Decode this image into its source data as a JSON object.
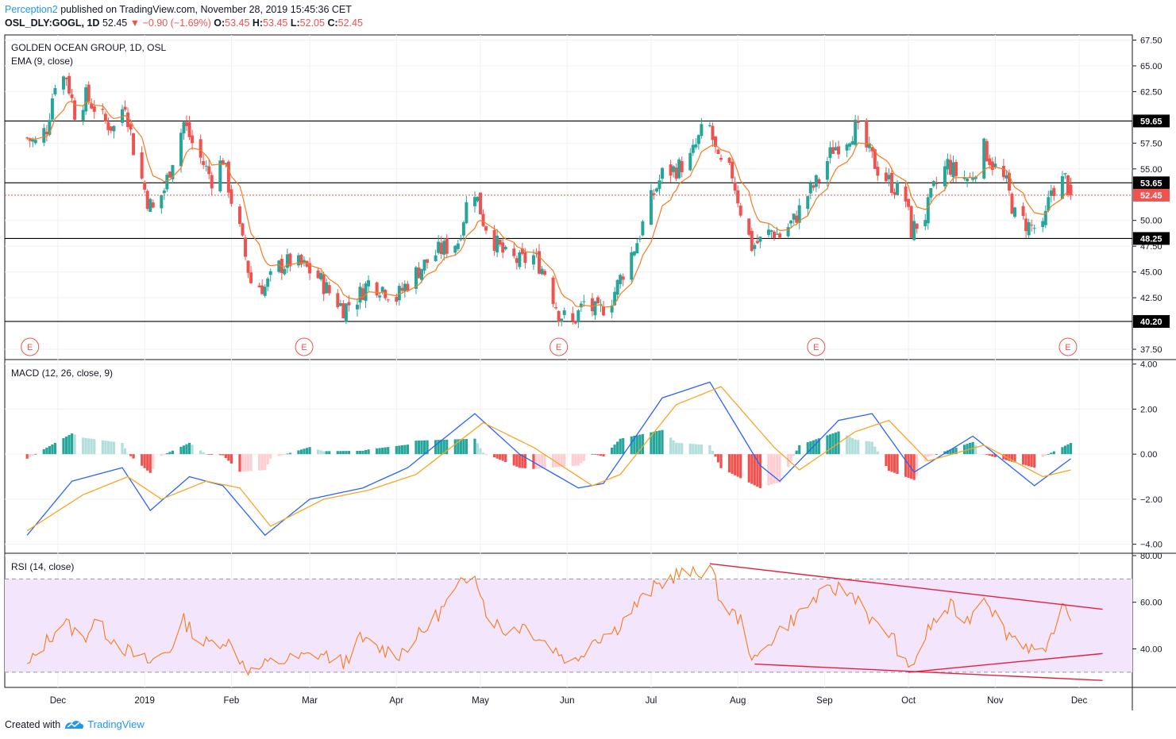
{
  "header": {
    "author": "Perception2",
    "published_text": "published on TradingView.com, November 28, 2019 15:45:36 CET",
    "symbol": "OSL_DLY:GOGL, 1D",
    "last": "52.45",
    "change": "−0.90 (−1.69%)",
    "open_label": "O:",
    "open": "53.45",
    "high_label": "H:",
    "high": "53.45",
    "low_label": "L:",
    "low": "52.05",
    "close_label": "C:",
    "close": "52.45"
  },
  "footer": {
    "created_with": "Created with",
    "brand": "TradingView"
  },
  "colors": {
    "up": "#26a69a",
    "down": "#ef5350",
    "ema": "#f57c1f",
    "macd": "#2962ff",
    "signal": "#f5a623",
    "rsi": "#f57c1f",
    "rsi_band": "#f3e5fb",
    "trendline": "#e91e3c",
    "level": "#000000"
  },
  "chart_data": [
    {
      "type": "candlestick",
      "title": "GOLDEN OCEAN GROUP, 1D, OSL",
      "indicator": "EMA (9, close)",
      "ylim": [
        36.5,
        68
      ],
      "y_ticks": [
        "67.50",
        "65.00",
        "62.50",
        "57.50",
        "55.00",
        "50.00",
        "47.50",
        "45.00",
        "42.50",
        "37.50"
      ],
      "x_ticks": [
        "Dec",
        "2019",
        "Feb",
        "Mar",
        "Apr",
        "May",
        "Jun",
        "Jul",
        "Aug",
        "Sep",
        "Oct",
        "Nov",
        "Dec"
      ],
      "horizontal_levels": [
        59.65,
        53.65,
        48.25,
        40.2
      ],
      "level_labels": [
        "59.65",
        "53.65",
        "48.25",
        "40.20"
      ],
      "last_price": 52.45,
      "last_price_label": "52.45",
      "earnings_marker": "E",
      "earnings_dates": [
        "2018-11-21",
        "2019-02-27",
        "2019-05-29",
        "2019-08-29",
        "2019-11-27"
      ],
      "start_date": "2018-11-20",
      "end_date": "2019-11-28",
      "anchors": [
        [
          "2018-11-20",
          58.0
        ],
        [
          "2018-11-23",
          57.5
        ],
        [
          "2018-11-27",
          59.0
        ],
        [
          "2018-11-30",
          63.5
        ],
        [
          "2018-12-04",
          64.0
        ],
        [
          "2018-12-07",
          60.5
        ],
        [
          "2018-12-11",
          62.0
        ],
        [
          "2018-12-14",
          61.0
        ],
        [
          "2018-12-18",
          59.5
        ],
        [
          "2018-12-21",
          59.0
        ],
        [
          "2018-12-25",
          61.5
        ],
        [
          "2018-12-28",
          57.0
        ],
        [
          "2019-01-02",
          52.0
        ],
        [
          "2019-01-04",
          51.0
        ],
        [
          "2019-01-08",
          53.0
        ],
        [
          "2019-01-11",
          56.0
        ],
        [
          "2019-01-15",
          59.5
        ],
        [
          "2019-01-18",
          57.5
        ],
        [
          "2019-01-22",
          55.5
        ],
        [
          "2019-01-25",
          54.0
        ],
        [
          "2019-01-29",
          56.0
        ],
        [
          "2019-02-01",
          52.0
        ],
        [
          "2019-02-04",
          49.0
        ],
        [
          "2019-02-06",
          46.5
        ],
        [
          "2019-02-08",
          44.0
        ],
        [
          "2019-02-13",
          43.5
        ],
        [
          "2019-02-18",
          45.5
        ],
        [
          "2019-02-22",
          46.0
        ],
        [
          "2019-02-27",
          45.5
        ],
        [
          "2019-03-04",
          44.5
        ],
        [
          "2019-03-08",
          43.0
        ],
        [
          "2019-03-13",
          41.5
        ],
        [
          "2019-03-18",
          42.5
        ],
        [
          "2019-03-22",
          44.0
        ],
        [
          "2019-03-27",
          43.5
        ],
        [
          "2019-04-01",
          42.5
        ],
        [
          "2019-04-05",
          44.0
        ],
        [
          "2019-04-10",
          45.5
        ],
        [
          "2019-04-16",
          47.0
        ],
        [
          "2019-04-23",
          48.0
        ],
        [
          "2019-04-26",
          51.5
        ],
        [
          "2019-04-29",
          53.0
        ],
        [
          "2019-05-02",
          50.0
        ],
        [
          "2019-05-06",
          48.0
        ],
        [
          "2019-05-10",
          46.5
        ],
        [
          "2019-05-15",
          46.0
        ],
        [
          "2019-05-20",
          46.5
        ],
        [
          "2019-05-24",
          45.0
        ],
        [
          "2019-05-29",
          41.0
        ],
        [
          "2019-06-03",
          40.0
        ],
        [
          "2019-06-07",
          42.0
        ],
        [
          "2019-06-12",
          41.0
        ],
        [
          "2019-06-17",
          42.5
        ],
        [
          "2019-06-21",
          45.0
        ],
        [
          "2019-06-26",
          48.0
        ],
        [
          "2019-07-01",
          52.0
        ],
        [
          "2019-07-05",
          54.5
        ],
        [
          "2019-07-10",
          55.0
        ],
        [
          "2019-07-15",
          56.0
        ],
        [
          "2019-07-19",
          58.5
        ],
        [
          "2019-07-22",
          59.0
        ],
        [
          "2019-07-25",
          55.5
        ],
        [
          "2019-07-30",
          54.5
        ],
        [
          "2019-08-02",
          51.0
        ],
        [
          "2019-08-06",
          47.5
        ],
        [
          "2019-08-09",
          48.0
        ],
        [
          "2019-08-13",
          49.0
        ],
        [
          "2019-08-16",
          48.5
        ],
        [
          "2019-08-21",
          50.0
        ],
        [
          "2019-08-26",
          52.5
        ],
        [
          "2019-08-30",
          54.0
        ],
        [
          "2019-09-04",
          57.0
        ],
        [
          "2019-09-09",
          58.0
        ],
        [
          "2019-09-12",
          59.0
        ],
        [
          "2019-09-16",
          57.0
        ],
        [
          "2019-09-20",
          55.0
        ],
        [
          "2019-09-25",
          53.5
        ],
        [
          "2019-09-30",
          52.0
        ],
        [
          "2019-10-02",
          49.0
        ],
        [
          "2019-10-07",
          50.5
        ],
        [
          "2019-10-10",
          53.0
        ],
        [
          "2019-10-15",
          55.5
        ],
        [
          "2019-10-18",
          54.5
        ],
        [
          "2019-10-23",
          54.0
        ],
        [
          "2019-10-28",
          57.0
        ],
        [
          "2019-10-31",
          55.5
        ],
        [
          "2019-11-05",
          53.5
        ],
        [
          "2019-11-08",
          50.5
        ],
        [
          "2019-11-13",
          49.5
        ],
        [
          "2019-11-18",
          49.0
        ],
        [
          "2019-11-21",
          53.0
        ],
        [
          "2019-11-26",
          54.0
        ],
        [
          "2019-11-28",
          52.45
        ]
      ]
    },
    {
      "type": "line",
      "title": "MACD (12, 26, close, 9)",
      "ylim": [
        -4.4,
        4.2
      ],
      "y_ticks": [
        "4.00",
        "2.00",
        "0.00",
        "−2.00",
        "−4.00"
      ],
      "series": [
        {
          "role": "macd",
          "points": [
            [
              "2018-11-20",
              -3.6
            ],
            [
              "2018-12-06",
              -1.2
            ],
            [
              "2018-12-24",
              -0.6
            ],
            [
              "2019-01-03",
              -2.5
            ],
            [
              "2019-01-17",
              -1.0
            ],
            [
              "2019-01-29",
              -1.4
            ],
            [
              "2019-02-13",
              -3.6
            ],
            [
              "2019-03-01",
              -2.0
            ],
            [
              "2019-03-20",
              -1.5
            ],
            [
              "2019-04-05",
              -0.6
            ],
            [
              "2019-04-29",
              1.8
            ],
            [
              "2019-05-15",
              0.0
            ],
            [
              "2019-06-05",
              -1.5
            ],
            [
              "2019-06-14",
              -1.3
            ],
            [
              "2019-07-05",
              2.5
            ],
            [
              "2019-07-22",
              3.2
            ],
            [
              "2019-08-09",
              -0.5
            ],
            [
              "2019-08-16",
              -1.2
            ],
            [
              "2019-09-06",
              1.5
            ],
            [
              "2019-09-18",
              1.8
            ],
            [
              "2019-10-03",
              -0.8
            ],
            [
              "2019-10-24",
              0.8
            ],
            [
              "2019-11-15",
              -1.4
            ],
            [
              "2019-11-28",
              -0.2
            ]
          ]
        },
        {
          "role": "signal",
          "points": [
            [
              "2018-11-20",
              -3.4
            ],
            [
              "2018-12-10",
              -1.8
            ],
            [
              "2018-12-26",
              -1.0
            ],
            [
              "2019-01-07",
              -2.0
            ],
            [
              "2019-01-23",
              -1.2
            ],
            [
              "2019-02-04",
              -1.5
            ],
            [
              "2019-02-15",
              -3.2
            ],
            [
              "2019-03-06",
              -2.0
            ],
            [
              "2019-03-22",
              -1.6
            ],
            [
              "2019-04-08",
              -0.9
            ],
            [
              "2019-05-02",
              1.4
            ],
            [
              "2019-05-20",
              0.3
            ],
            [
              "2019-06-10",
              -1.4
            ],
            [
              "2019-06-20",
              -0.9
            ],
            [
              "2019-07-10",
              2.2
            ],
            [
              "2019-07-26",
              3.0
            ],
            [
              "2019-08-14",
              0.3
            ],
            [
              "2019-08-23",
              -0.7
            ],
            [
              "2019-09-12",
              1.0
            ],
            [
              "2019-09-24",
              1.5
            ],
            [
              "2019-10-08",
              -0.3
            ],
            [
              "2019-10-28",
              0.4
            ],
            [
              "2019-11-18",
              -1.0
            ],
            [
              "2019-11-28",
              -0.7
            ]
          ]
        }
      ],
      "histogram": true
    },
    {
      "type": "line",
      "title": "RSI (14, close)",
      "ylim": [
        23.5,
        81
      ],
      "y_ticks": [
        "80.00",
        "60.00",
        "40.00"
      ],
      "band": [
        30,
        70
      ],
      "series": [
        {
          "role": "rsi",
          "points": [
            [
              "2018-11-20",
              32
            ],
            [
              "2018-11-26",
              42
            ],
            [
              "2018-12-03",
              52
            ],
            [
              "2018-12-10",
              44
            ],
            [
              "2018-12-14",
              52
            ],
            [
              "2018-12-19",
              46
            ],
            [
              "2018-12-27",
              38
            ],
            [
              "2019-01-03",
              34
            ],
            [
              "2019-01-10",
              40
            ],
            [
              "2019-01-15",
              52
            ],
            [
              "2019-01-22",
              42
            ],
            [
              "2019-01-30",
              44
            ],
            [
              "2019-02-08",
              30
            ],
            [
              "2019-02-15",
              34
            ],
            [
              "2019-02-25",
              36
            ],
            [
              "2019-03-05",
              38
            ],
            [
              "2019-03-13",
              34
            ],
            [
              "2019-03-19",
              44
            ],
            [
              "2019-03-26",
              40
            ],
            [
              "2019-04-02",
              38
            ],
            [
              "2019-04-11",
              48
            ],
            [
              "2019-04-18",
              58
            ],
            [
              "2019-04-23",
              66
            ],
            [
              "2019-04-29",
              74
            ],
            [
              "2019-05-03",
              56
            ],
            [
              "2019-05-09",
              48
            ],
            [
              "2019-05-17",
              50
            ],
            [
              "2019-05-23",
              44
            ],
            [
              "2019-06-03",
              34
            ],
            [
              "2019-06-10",
              44
            ],
            [
              "2019-06-18",
              48
            ],
            [
              "2019-06-25",
              58
            ],
            [
              "2019-07-02",
              66
            ],
            [
              "2019-07-10",
              72
            ],
            [
              "2019-07-17",
              72
            ],
            [
              "2019-07-22",
              76
            ],
            [
              "2019-07-26",
              60
            ],
            [
              "2019-08-02",
              52
            ],
            [
              "2019-08-07",
              34
            ],
            [
              "2019-08-14",
              46
            ],
            [
              "2019-08-22",
              54
            ],
            [
              "2019-08-29",
              62
            ],
            [
              "2019-09-06",
              66
            ],
            [
              "2019-09-13",
              62
            ],
            [
              "2019-09-19",
              50
            ],
            [
              "2019-09-25",
              46
            ],
            [
              "2019-10-01",
              30
            ],
            [
              "2019-10-09",
              50
            ],
            [
              "2019-10-16",
              58
            ],
            [
              "2019-10-22",
              52
            ],
            [
              "2019-10-28",
              64
            ],
            [
              "2019-11-04",
              48
            ],
            [
              "2019-11-12",
              42
            ],
            [
              "2019-11-19",
              36
            ],
            [
              "2019-11-22",
              50
            ],
            [
              "2019-11-26",
              58
            ],
            [
              "2019-11-28",
              52
            ]
          ]
        }
      ],
      "trendlines": [
        {
          "from": [
            "2019-07-22",
            76.5
          ],
          "to": [
            "2019-11-28",
            57
          ]
        },
        {
          "from": [
            "2019-08-07",
            33.5
          ],
          "to": [
            "2019-11-28",
            26.5
          ]
        },
        {
          "from": [
            "2019-10-01",
            30
          ],
          "to": [
            "2019-11-28",
            38
          ]
        }
      ]
    }
  ]
}
